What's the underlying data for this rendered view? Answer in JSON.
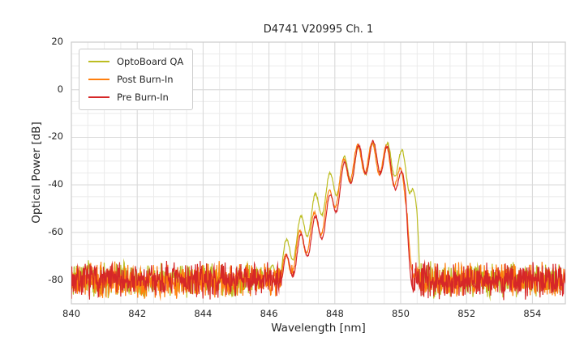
{
  "chart_data": {
    "type": "line",
    "title": "D4741 V20995 Ch. 1",
    "xlabel": "Wavelength [nm]",
    "ylabel": "Optical Power [dB]",
    "xlim": [
      840,
      855
    ],
    "ylim": [
      -90,
      20
    ],
    "xticks": [
      840,
      842,
      844,
      846,
      848,
      850,
      852,
      854
    ],
    "yticks": [
      20,
      0,
      -20,
      -40,
      -60,
      -80
    ],
    "grid": {
      "major_color": "#d9d9d9",
      "minor_color": "#ebebeb",
      "x_minor_step": 0.5,
      "y_minor_step": 5,
      "x_major_step": 2,
      "y_major_step": 20
    },
    "frame_color": "#cccccc",
    "legend": {
      "position": "upper-left"
    },
    "series": [
      {
        "name": "OptoBoard QA",
        "color": "#bcbd22",
        "noise_floor_db": -80,
        "noise_amplitude_db": 8.5,
        "mode_spacing_nm": 0.44,
        "mode_phase_nm": 849.16,
        "mode_depth_db": 13,
        "peak_envelope": [
          [
            846.0,
            -76
          ],
          [
            846.3,
            -68
          ],
          [
            846.75,
            -58
          ],
          [
            847.2,
            -48
          ],
          [
            847.6,
            -40
          ],
          [
            848.0,
            -32
          ],
          [
            848.45,
            -26
          ],
          [
            848.9,
            -22.5
          ],
          [
            849.3,
            -22
          ],
          [
            849.6,
            -22.5
          ],
          [
            849.9,
            -24
          ],
          [
            850.15,
            -26.5
          ],
          [
            850.35,
            -33
          ],
          [
            850.5,
            -52
          ],
          [
            850.62,
            -82
          ]
        ]
      },
      {
        "name": "Post Burn-In",
        "color": "#ff7f0e",
        "noise_floor_db": -80,
        "noise_amplitude_db": 8.5,
        "mode_spacing_nm": 0.44,
        "mode_phase_nm": 849.13,
        "mode_depth_db": 13,
        "peak_envelope": [
          [
            846.2,
            -77
          ],
          [
            846.5,
            -69
          ],
          [
            846.9,
            -60
          ],
          [
            847.3,
            -53
          ],
          [
            847.7,
            -46
          ],
          [
            848.0,
            -37
          ],
          [
            848.3,
            -28
          ],
          [
            848.6,
            -23.5
          ],
          [
            848.95,
            -22
          ],
          [
            849.25,
            -22
          ],
          [
            849.55,
            -23.5
          ],
          [
            849.8,
            -27
          ],
          [
            850.0,
            -33
          ],
          [
            850.2,
            -40
          ],
          [
            850.32,
            -66
          ],
          [
            850.42,
            -83
          ]
        ]
      },
      {
        "name": "Pre Burn-In",
        "color": "#d62728",
        "noise_floor_db": -80,
        "noise_amplitude_db": 8.5,
        "mode_spacing_nm": 0.44,
        "mode_phase_nm": 849.16,
        "mode_depth_db": 13,
        "peak_envelope": [
          [
            846.2,
            -77
          ],
          [
            846.5,
            -70
          ],
          [
            846.9,
            -62
          ],
          [
            847.3,
            -55
          ],
          [
            847.7,
            -48
          ],
          [
            848.0,
            -40
          ],
          [
            848.3,
            -30
          ],
          [
            848.6,
            -24
          ],
          [
            848.95,
            -22
          ],
          [
            849.25,
            -21.5
          ],
          [
            849.55,
            -23
          ],
          [
            849.8,
            -28
          ],
          [
            850.0,
            -34
          ],
          [
            850.15,
            -36.5
          ],
          [
            850.28,
            -62
          ],
          [
            850.38,
            -84
          ]
        ]
      }
    ]
  }
}
